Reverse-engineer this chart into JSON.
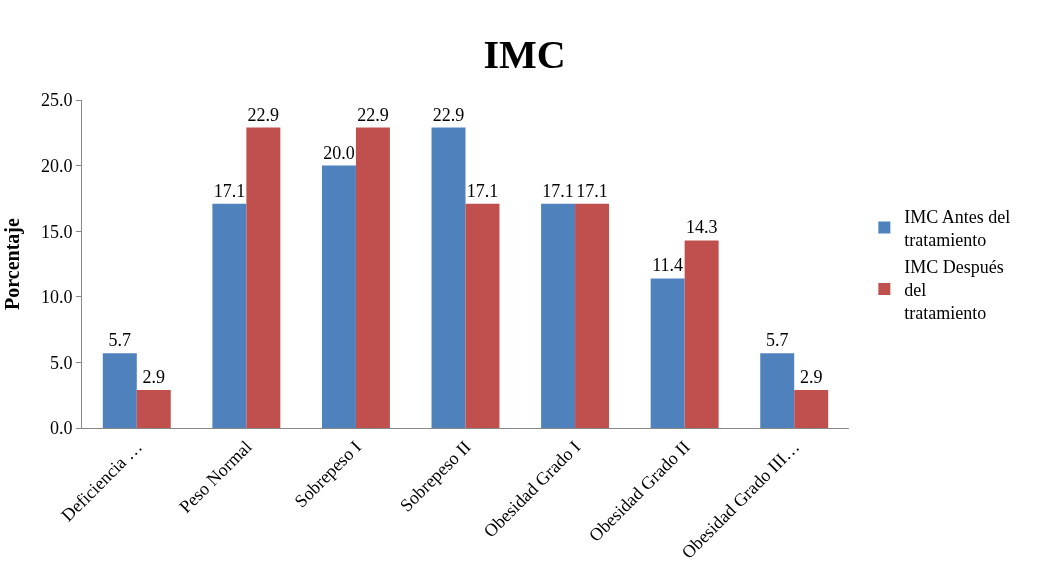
{
  "chart_data": {
    "type": "bar",
    "title": "IMC",
    "ylabel": "Porcentaje",
    "categories": [
      "Deficiencia …",
      "Peso Normal",
      "Sobrepeso I",
      "Sobrepeso II",
      "Obesidad Grado I",
      "Obesidad Grado II",
      "Obesidad Grado III…"
    ],
    "series": [
      {
        "name": "IMC Antes del tratamiento",
        "color": "#4f81bd",
        "values": [
          5.7,
          17.1,
          20.0,
          22.9,
          17.1,
          11.4,
          5.7
        ],
        "value_labels": [
          "5.7",
          "17.1",
          "20.0",
          "22.9",
          "17.1",
          "11.4",
          "5.7"
        ]
      },
      {
        "name": "IMC Después del tratamiento",
        "color": "#c0504d",
        "values": [
          2.9,
          22.9,
          22.9,
          17.1,
          17.1,
          14.3,
          2.9
        ],
        "value_labels": [
          "2.9",
          "22.9",
          "22.9",
          "17.1",
          "17.1",
          "14.3",
          "2.9"
        ]
      }
    ],
    "ylim": [
      0,
      25
    ],
    "yticks": [
      {
        "value": 0,
        "label": "0.0"
      },
      {
        "value": 5,
        "label": "5.0"
      },
      {
        "value": 10,
        "label": "10.0"
      },
      {
        "value": 15,
        "label": "15.0"
      },
      {
        "value": 20,
        "label": "20.0"
      },
      {
        "value": 25,
        "label": "25.0"
      }
    ],
    "legend": "right"
  }
}
